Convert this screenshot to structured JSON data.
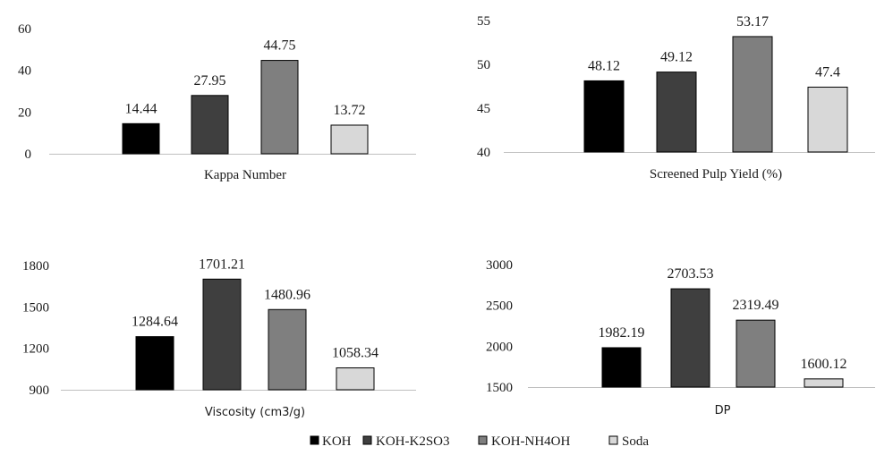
{
  "chart_data": [
    {
      "type": "bar",
      "xlabel": "Kappa Number",
      "categories": [
        "KOH",
        "KOH-K2SO3",
        "KOH-NH4OH",
        "Soda"
      ],
      "values": [
        14.44,
        27.95,
        44.75,
        13.72
      ],
      "value_labels": [
        "14.44",
        "27.95",
        "44.75",
        "13.72"
      ],
      "ylim": [
        0,
        60
      ],
      "yticks": [
        "0",
        "20",
        "40",
        "60"
      ],
      "grid": false
    },
    {
      "type": "bar",
      "xlabel": "Screened Pulp Yield (%)",
      "categories": [
        "KOH",
        "KOH-K2SO3",
        "KOH-NH4OH",
        "Soda"
      ],
      "values": [
        48.12,
        49.12,
        53.17,
        47.4
      ],
      "value_labels": [
        "48.12",
        "49.12",
        "53.17",
        "47.4"
      ],
      "ylim": [
        40,
        55
      ],
      "yticks": [
        "40",
        "45",
        "50",
        "55"
      ],
      "grid": false
    },
    {
      "type": "bar",
      "xlabel": "Viscosity (cm3/g)",
      "categories": [
        "KOH",
        "KOH-K2SO3",
        "KOH-NH4OH",
        "Soda"
      ],
      "values": [
        1284.64,
        1701.21,
        1480.96,
        1058.34
      ],
      "value_labels": [
        "1284.64",
        "1701.21",
        "1480.96",
        "1058.34"
      ],
      "ylim": [
        900,
        1800
      ],
      "yticks": [
        "900",
        "1200",
        "1500",
        "1800"
      ],
      "grid": false
    },
    {
      "type": "bar",
      "xlabel": "DP",
      "categories": [
        "KOH",
        "KOH-K2SO3",
        "KOH-NH4OH",
        "Soda"
      ],
      "values": [
        1982.19,
        2703.53,
        2319.49,
        1600.12
      ],
      "value_labels": [
        "1982.19",
        "2703.53",
        "2319.49",
        "1600.12"
      ],
      "ylim": [
        1500,
        3000
      ],
      "yticks": [
        "1500",
        "2000",
        "2500",
        "3000"
      ],
      "grid": false
    }
  ],
  "legend": {
    "placement": "bottom-center",
    "items": [
      {
        "label": "KOH",
        "color": "#000000"
      },
      {
        "label": "KOH-K2SO3",
        "color": "#3f3f3f"
      },
      {
        "label": "KOH-NH4OH",
        "color": "#7f7f7f"
      },
      {
        "label": "Soda",
        "color": "#d8d8d8"
      }
    ]
  },
  "bar_colors": [
    "#000000",
    "#3f3f3f",
    "#7f7f7f",
    "#d8d8d8"
  ]
}
